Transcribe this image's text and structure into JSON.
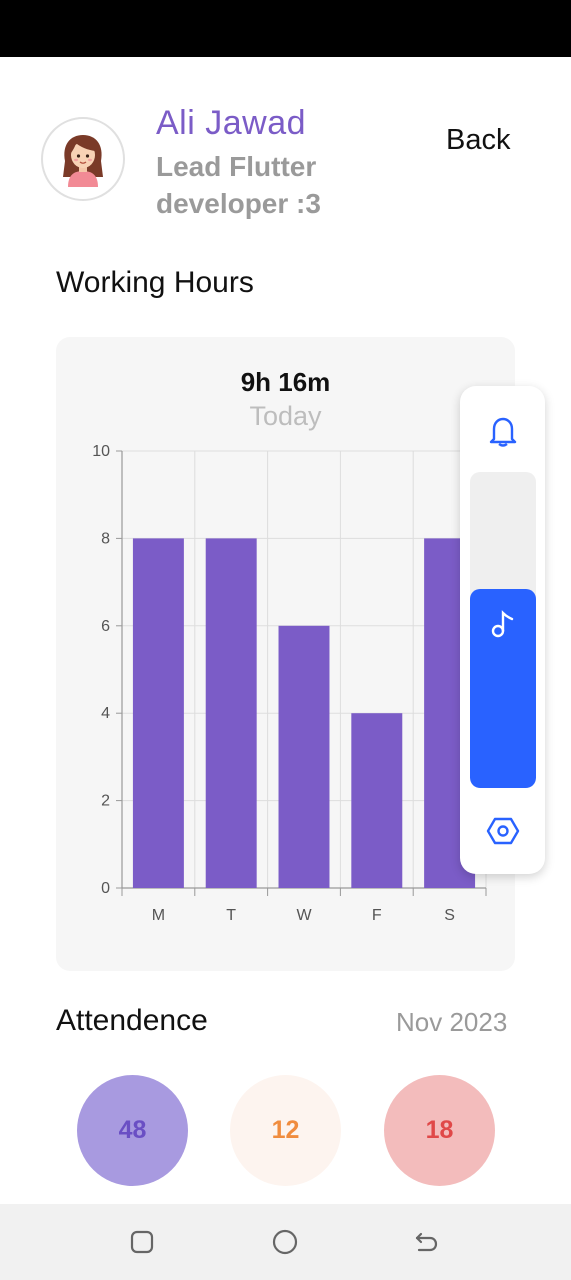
{
  "profile": {
    "name": "Ali Jawad",
    "role": "Lead Flutter developer :3",
    "back_label": "Back"
  },
  "working_hours": {
    "section_title": "Working Hours",
    "total": "9h 16m",
    "period": "Today"
  },
  "chart_data": {
    "type": "bar",
    "categories": [
      "M",
      "T",
      "W",
      "F",
      "S"
    ],
    "values": [
      8,
      8,
      6,
      4,
      8
    ],
    "ylim": [
      0,
      10
    ],
    "yticks": [
      0,
      2,
      4,
      6,
      8,
      10
    ],
    "grid": true,
    "bar_color": "#7b5cc7"
  },
  "side_panel": {
    "icons": [
      "bell-icon",
      "music-note-icon",
      "hexagon-settings-icon"
    ],
    "level": 0.63,
    "accent": "#2962ff"
  },
  "attendance": {
    "title": "Attendence",
    "date": "Nov 2023",
    "stats": [
      {
        "value": "48",
        "bg": "#a89ae0",
        "fg": "#6a4fc4"
      },
      {
        "value": "12",
        "bg": "#fdf4ef",
        "fg": "#f08c3e"
      },
      {
        "value": "18",
        "bg": "#f3bcbc",
        "fg": "#e04848"
      }
    ]
  },
  "nav": {
    "items": [
      "recents-button",
      "home-button",
      "back-nav-button"
    ]
  }
}
